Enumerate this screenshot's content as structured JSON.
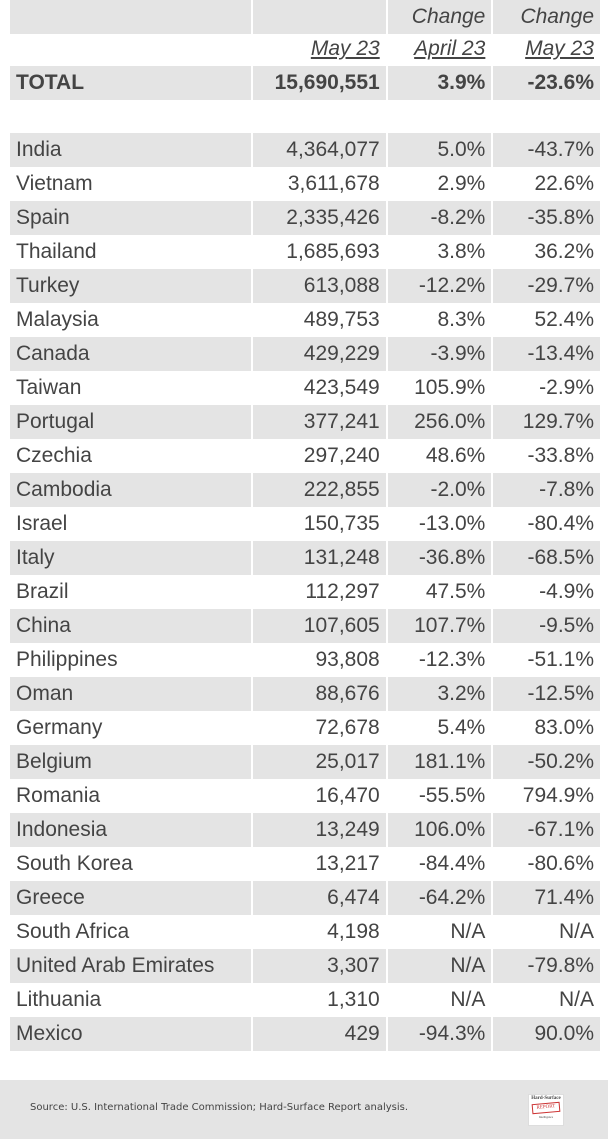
{
  "header": {
    "row1": [
      "",
      "",
      "Change",
      "Change"
    ],
    "row2": [
      "",
      "May 23",
      "April 23",
      "May 23"
    ]
  },
  "total": {
    "label": "TOTAL",
    "value": "15,690,551",
    "change_april": "3.9%",
    "change_may": "-23.6%"
  },
  "rows": [
    [
      "India",
      "4,364,077",
      "5.0%",
      "-43.7%"
    ],
    [
      "Vietnam",
      "3,611,678",
      "2.9%",
      "22.6%"
    ],
    [
      "Spain",
      "2,335,426",
      "-8.2%",
      "-35.8%"
    ],
    [
      "Thailand",
      "1,685,693",
      "3.8%",
      "36.2%"
    ],
    [
      "Turkey",
      "613,088",
      "-12.2%",
      "-29.7%"
    ],
    [
      "Malaysia",
      "489,753",
      "8.3%",
      "52.4%"
    ],
    [
      "Canada",
      "429,229",
      "-3.9%",
      "-13.4%"
    ],
    [
      "Taiwan",
      "423,549",
      "105.9%",
      "-2.9%"
    ],
    [
      "Portugal",
      "377,241",
      "256.0%",
      "129.7%"
    ],
    [
      "Czechia",
      "297,240",
      "48.6%",
      "-33.8%"
    ],
    [
      "Cambodia",
      "222,855",
      "-2.0%",
      "-7.8%"
    ],
    [
      "Israel",
      "150,735",
      "-13.0%",
      "-80.4%"
    ],
    [
      "Italy",
      "131,248",
      "-36.8%",
      "-68.5%"
    ],
    [
      "Brazil",
      "112,297",
      "47.5%",
      "-4.9%"
    ],
    [
      "China",
      "107,605",
      "107.7%",
      "-9.5%"
    ],
    [
      "Philippines",
      "93,808",
      "-12.3%",
      "-51.1%"
    ],
    [
      "Oman",
      "88,676",
      "3.2%",
      "-12.5%"
    ],
    [
      "Germany",
      "72,678",
      "5.4%",
      "83.0%"
    ],
    [
      "Belgium",
      "25,017",
      "181.1%",
      "-50.2%"
    ],
    [
      "Romania",
      "16,470",
      "-55.5%",
      "794.9%"
    ],
    [
      "Indonesia",
      "13,249",
      "106.0%",
      "-67.1%"
    ],
    [
      "South Korea",
      "13,217",
      "-84.4%",
      "-80.6%"
    ],
    [
      "Greece",
      "6,474",
      "-64.2%",
      "71.4%"
    ],
    [
      "South Africa",
      "4,198",
      "N/A",
      "N/A"
    ],
    [
      "United Arab Emirates",
      "3,307",
      "N/A",
      "-79.8%"
    ],
    [
      "Lithuania",
      "1,310",
      "N/A",
      "N/A"
    ],
    [
      "Mexico",
      "429",
      "-94.3%",
      "90.0%"
    ]
  ],
  "footer": {
    "source": "Source: U.S. International Trade Commission; Hard-Surface Report analysis.",
    "logo_text": [
      "Hard-Surface",
      "REPORT",
      "Intelligence for the industry"
    ]
  },
  "colors": {
    "row_fill": "#e4e4e4",
    "text": "#444444"
  }
}
